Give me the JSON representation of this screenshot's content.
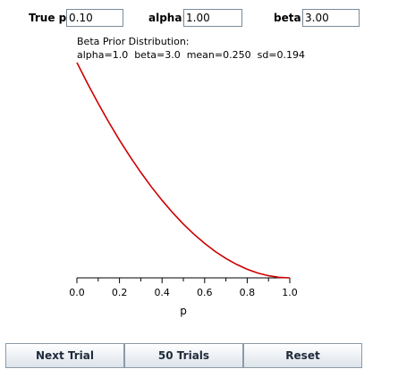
{
  "inputs": {
    "true_p": {
      "label": "True p:",
      "value": "0.10"
    },
    "alpha": {
      "label": "alpha:",
      "value": "1.00"
    },
    "beta": {
      "label": "beta:",
      "value": "3.00"
    }
  },
  "chart_data": {
    "type": "line",
    "title": "Beta Prior Distribution:",
    "subtitle": "alpha=1.0  beta=3.0  mean=0.250  sd=0.194",
    "xlabel": "p",
    "ylabel": "",
    "xlim": [
      0,
      1
    ],
    "xticks": [
      "0.0",
      "0.2",
      "0.4",
      "0.6",
      "0.8",
      "1.0"
    ],
    "grid": false,
    "line_color": "#cc0000",
    "series": [
      {
        "x": [
          0.0,
          0.05,
          0.1,
          0.15,
          0.2,
          0.25,
          0.3,
          0.35,
          0.4,
          0.45,
          0.5,
          0.55,
          0.6,
          0.65,
          0.7,
          0.75,
          0.8,
          0.85,
          0.9,
          0.95,
          1.0
        ],
        "y": [
          3.0,
          2.7075,
          2.43,
          2.1675,
          1.92,
          1.6875,
          1.47,
          1.2675,
          1.08,
          0.9075,
          0.75,
          0.6075,
          0.48,
          0.3675,
          0.27,
          0.1875,
          0.12,
          0.0675,
          0.03,
          0.0075,
          0.0
        ]
      }
    ]
  },
  "buttons": {
    "next_trial": "Next Trial",
    "fifty_trials": "50 Trials",
    "reset": "Reset"
  }
}
